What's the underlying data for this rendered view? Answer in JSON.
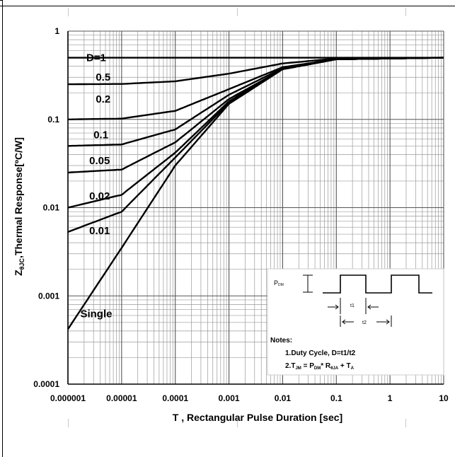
{
  "chart_data": {
    "type": "line",
    "title": "",
    "xlabel": "T , Rectangular Pulse Duration [sec]",
    "ylabel_parts": {
      "main": "Z",
      "sub": "θJC",
      "rest": ",Thermal Response[ºC/W]"
    },
    "x_scale": "log",
    "y_scale": "log",
    "xlim": [
      1e-06,
      10
    ],
    "ylim": [
      0.0001,
      1
    ],
    "grid": true,
    "x_ticks": [
      {
        "value": 1e-06,
        "label": "0.000001"
      },
      {
        "value": 1e-05,
        "label": "0.00001"
      },
      {
        "value": 0.0001,
        "label": "0.0001"
      },
      {
        "value": 0.001,
        "label": "0.001"
      },
      {
        "value": 0.01,
        "label": "0.01"
      },
      {
        "value": 0.1,
        "label": "0.1"
      },
      {
        "value": 1,
        "label": "1"
      },
      {
        "value": 10,
        "label": "10"
      }
    ],
    "y_ticks": [
      {
        "value": 1,
        "label": "1"
      },
      {
        "value": 0.1,
        "label": "0.1"
      },
      {
        "value": 0.01,
        "label": "0.01"
      },
      {
        "value": 0.001,
        "label": "0.001"
      },
      {
        "value": 0.0001,
        "label": "0.0001"
      }
    ],
    "series": [
      {
        "name": "D=1",
        "points": [
          [
            1e-06,
            0.5
          ],
          [
            10,
            0.5
          ]
        ]
      },
      {
        "name": "0.5",
        "points": [
          [
            1e-06,
            0.25
          ],
          [
            1e-05,
            0.252
          ],
          [
            0.0001,
            0.27
          ],
          [
            0.001,
            0.33
          ],
          [
            0.01,
            0.43
          ],
          [
            0.1,
            0.49
          ],
          [
            10,
            0.5
          ]
        ]
      },
      {
        "name": "0.2",
        "points": [
          [
            1e-06,
            0.1
          ],
          [
            1e-05,
            0.102
          ],
          [
            0.0001,
            0.125
          ],
          [
            0.001,
            0.22
          ],
          [
            0.01,
            0.39
          ],
          [
            0.1,
            0.48
          ],
          [
            10,
            0.5
          ]
        ]
      },
      {
        "name": "0.1",
        "points": [
          [
            1e-06,
            0.05
          ],
          [
            1e-05,
            0.052
          ],
          [
            0.0001,
            0.077
          ],
          [
            0.001,
            0.19
          ],
          [
            0.01,
            0.38
          ],
          [
            0.1,
            0.48
          ],
          [
            10,
            0.5
          ]
        ]
      },
      {
        "name": "0.05",
        "points": [
          [
            1e-06,
            0.025
          ],
          [
            1e-05,
            0.027
          ],
          [
            0.0001,
            0.055
          ],
          [
            0.001,
            0.17
          ],
          [
            0.01,
            0.37
          ],
          [
            0.1,
            0.48
          ],
          [
            10,
            0.5
          ]
        ]
      },
      {
        "name": "0.02",
        "points": [
          [
            1e-06,
            0.01
          ],
          [
            1e-05,
            0.014
          ],
          [
            0.0001,
            0.042
          ],
          [
            0.001,
            0.16
          ],
          [
            0.01,
            0.37
          ],
          [
            0.1,
            0.48
          ],
          [
            10,
            0.5
          ]
        ]
      },
      {
        "name": "0.01",
        "points": [
          [
            1e-06,
            0.0053
          ],
          [
            1e-05,
            0.009
          ],
          [
            0.0001,
            0.037
          ],
          [
            0.001,
            0.155
          ],
          [
            0.01,
            0.37
          ],
          [
            0.1,
            0.48
          ],
          [
            10,
            0.5
          ]
        ]
      },
      {
        "name": "Single",
        "points": [
          [
            1e-06,
            0.00042
          ],
          [
            1e-05,
            0.0035
          ],
          [
            0.0001,
            0.03
          ],
          [
            0.001,
            0.15
          ],
          [
            0.01,
            0.37
          ],
          [
            0.1,
            0.48
          ],
          [
            10,
            0.5
          ]
        ]
      }
    ],
    "curve_labels": [
      {
        "text": "D=1",
        "x": 2.2e-06,
        "y": 0.5
      },
      {
        "text": "0.5",
        "x": 3.3e-06,
        "y": 0.3
      },
      {
        "text": "0.2",
        "x": 3.3e-06,
        "y": 0.17
      },
      {
        "text": "0.1",
        "x": 3e-06,
        "y": 0.067
      },
      {
        "text": "0.05",
        "x": 2.5e-06,
        "y": 0.034
      },
      {
        "text": "0.02",
        "x": 2.5e-06,
        "y": 0.0135
      },
      {
        "text": "0.01",
        "x": 2.5e-06,
        "y": 0.0055
      },
      {
        "text": "Single",
        "x": 1.7e-06,
        "y": 0.00063
      }
    ],
    "inset": {
      "pdm": {
        "main": "P",
        "sub": "DM"
      },
      "t1": "t1",
      "t2": "t2",
      "notes_title": "Notes:",
      "note1": "1.Duty  Cycle, D=t1/t2",
      "note2_parts": {
        "a": "2.T",
        "a_sub": "JM",
        "b": " = P",
        "b_sub": "DM",
        "c": "* R",
        "c_sub": "θJA",
        "d": " + T",
        "d_sub": "A"
      }
    }
  }
}
